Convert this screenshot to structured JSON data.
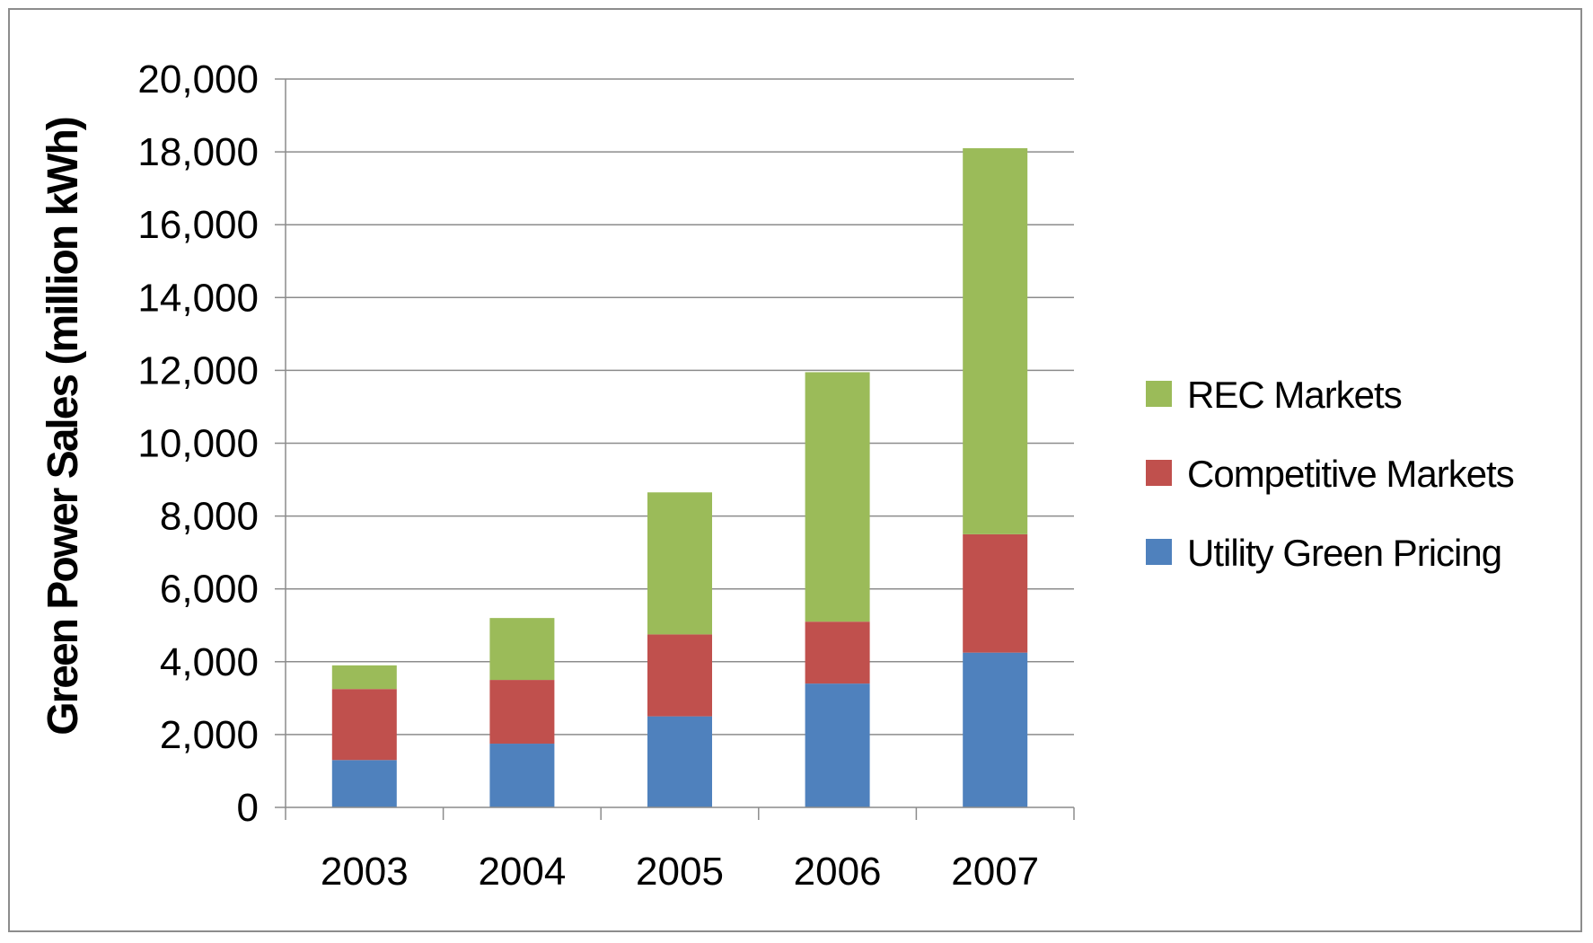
{
  "chart_data": {
    "type": "bar",
    "stacked": true,
    "title": "",
    "xlabel": "",
    "ylabel": "Green Power Sales (million kWh)",
    "categories": [
      "2003",
      "2004",
      "2005",
      "2006",
      "2007"
    ],
    "ylim": [
      0,
      20000
    ],
    "yticks": [
      0,
      2000,
      4000,
      6000,
      8000,
      10000,
      12000,
      14000,
      16000,
      18000,
      20000
    ],
    "ytick_labels": [
      "0",
      "2,000",
      "4,000",
      "6,000",
      "8,000",
      "10,000",
      "12,000",
      "14,000",
      "16,000",
      "18,000",
      "20,000"
    ],
    "grid": true,
    "legend_position": "right",
    "series": [
      {
        "name": "Utility Green Pricing",
        "color": "#4f81bd",
        "values": [
          1300,
          1750,
          2500,
          3400,
          4250
        ]
      },
      {
        "name": "Competitive Markets",
        "color": "#c0504d",
        "values": [
          1950,
          1750,
          2250,
          1700,
          3250
        ]
      },
      {
        "name": "REC Markets",
        "color": "#9bbb59",
        "values": [
          650,
          1700,
          3900,
          6850,
          10600
        ]
      }
    ],
    "legend_order": [
      "REC Markets",
      "Competitive Markets",
      "Utility Green Pricing"
    ]
  }
}
